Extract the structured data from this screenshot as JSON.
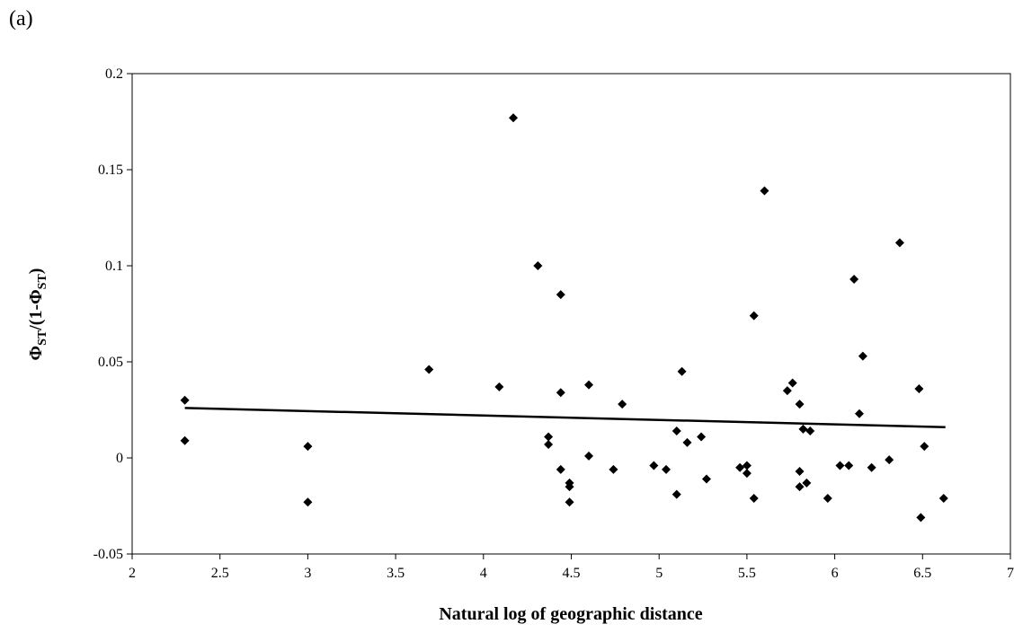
{
  "panel_label": "(a)",
  "chart_data": {
    "type": "scatter",
    "xlabel": "Natural log of geographic distance",
    "ylabel_main": "Φ",
    "ylabel_sub1": "ST",
    "ylabel_mid": "/(1-Φ",
    "ylabel_sub2": "ST",
    "ylabel_end": ")",
    "xlim": [
      2,
      7
    ],
    "ylim": [
      -0.05,
      0.2
    ],
    "xticks": [
      2,
      2.5,
      3,
      3.5,
      4,
      4.5,
      5,
      5.5,
      6,
      6.5,
      7
    ],
    "yticks": [
      -0.05,
      0,
      0.05,
      0.1,
      0.15,
      0.2
    ],
    "xtick_labels": [
      "2",
      "2.5",
      "3",
      "3.5",
      "4",
      "4.5",
      "5",
      "5.5",
      "6",
      "6.5",
      "7"
    ],
    "ytick_labels": [
      "-0.05",
      "0",
      "0.05",
      "0.1",
      "0.15",
      "0.2"
    ],
    "grid": false,
    "trendline": {
      "x": [
        2.3,
        6.63
      ],
      "y": [
        0.026,
        0.016
      ]
    },
    "points": [
      {
        "x": 2.3,
        "y": 0.03
      },
      {
        "x": 2.3,
        "y": 0.009
      },
      {
        "x": 3.0,
        "y": 0.006
      },
      {
        "x": 3.0,
        "y": -0.023
      },
      {
        "x": 3.69,
        "y": 0.046
      },
      {
        "x": 4.09,
        "y": 0.037
      },
      {
        "x": 4.17,
        "y": 0.177
      },
      {
        "x": 4.31,
        "y": 0.1
      },
      {
        "x": 4.37,
        "y": 0.011
      },
      {
        "x": 4.37,
        "y": 0.007
      },
      {
        "x": 4.44,
        "y": 0.085
      },
      {
        "x": 4.44,
        "y": 0.034
      },
      {
        "x": 4.44,
        "y": -0.006
      },
      {
        "x": 4.49,
        "y": -0.013
      },
      {
        "x": 4.49,
        "y": -0.015
      },
      {
        "x": 4.49,
        "y": -0.023
      },
      {
        "x": 4.6,
        "y": 0.038
      },
      {
        "x": 4.6,
        "y": 0.001
      },
      {
        "x": 4.74,
        "y": -0.006
      },
      {
        "x": 4.79,
        "y": 0.028
      },
      {
        "x": 4.97,
        "y": -0.004
      },
      {
        "x": 5.04,
        "y": -0.006
      },
      {
        "x": 5.1,
        "y": 0.014
      },
      {
        "x": 5.1,
        "y": -0.019
      },
      {
        "x": 5.13,
        "y": 0.045
      },
      {
        "x": 5.16,
        "y": 0.008
      },
      {
        "x": 5.24,
        "y": 0.011
      },
      {
        "x": 5.27,
        "y": -0.011
      },
      {
        "x": 5.46,
        "y": -0.005
      },
      {
        "x": 5.5,
        "y": -0.004
      },
      {
        "x": 5.5,
        "y": -0.008
      },
      {
        "x": 5.54,
        "y": 0.074
      },
      {
        "x": 5.54,
        "y": -0.021
      },
      {
        "x": 5.6,
        "y": 0.139
      },
      {
        "x": 5.73,
        "y": 0.035
      },
      {
        "x": 5.76,
        "y": 0.039
      },
      {
        "x": 5.8,
        "y": 0.028
      },
      {
        "x": 5.8,
        "y": -0.007
      },
      {
        "x": 5.8,
        "y": -0.015
      },
      {
        "x": 5.82,
        "y": 0.015
      },
      {
        "x": 5.84,
        "y": -0.013
      },
      {
        "x": 5.86,
        "y": 0.014
      },
      {
        "x": 5.96,
        "y": -0.021
      },
      {
        "x": 6.03,
        "y": -0.004
      },
      {
        "x": 6.08,
        "y": -0.004
      },
      {
        "x": 6.11,
        "y": 0.093
      },
      {
        "x": 6.14,
        "y": 0.023
      },
      {
        "x": 6.16,
        "y": 0.053
      },
      {
        "x": 6.21,
        "y": -0.005
      },
      {
        "x": 6.31,
        "y": -0.001
      },
      {
        "x": 6.37,
        "y": 0.112
      },
      {
        "x": 6.48,
        "y": 0.036
      },
      {
        "x": 6.49,
        "y": -0.031
      },
      {
        "x": 6.51,
        "y": 0.006
      },
      {
        "x": 6.62,
        "y": -0.021
      }
    ]
  }
}
